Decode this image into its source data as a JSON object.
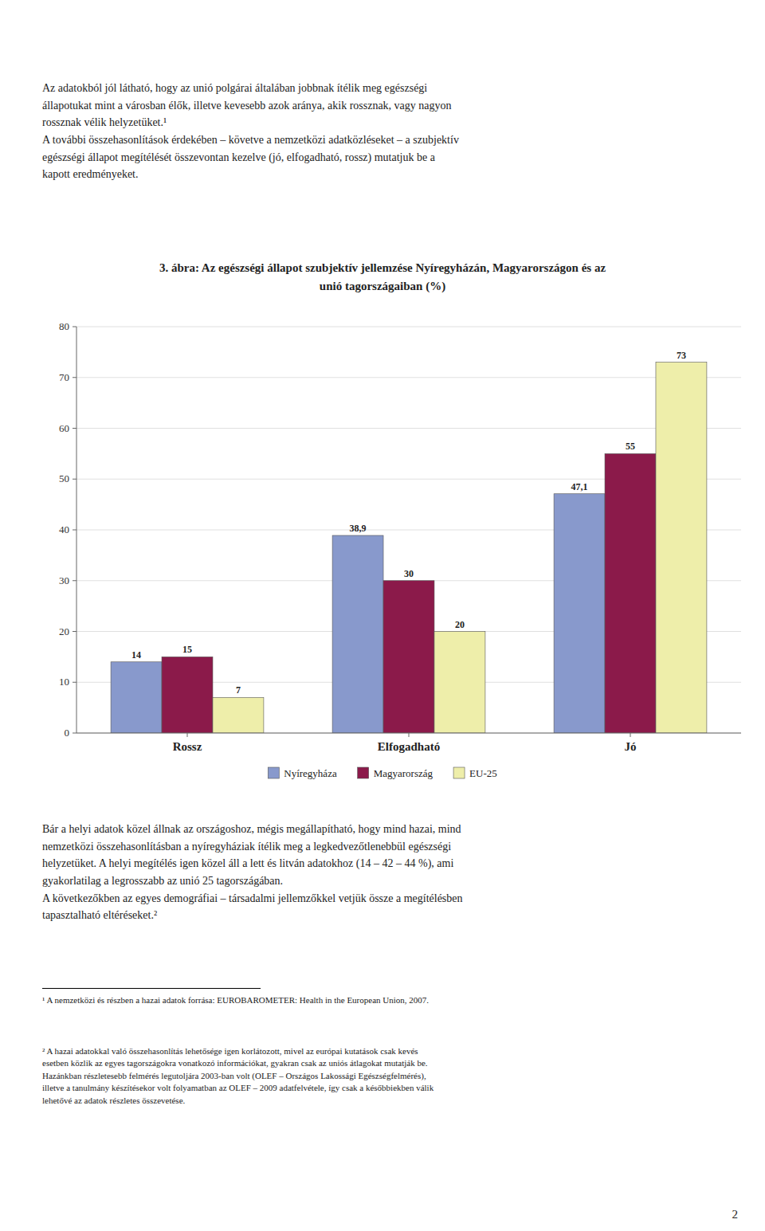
{
  "intro_text": "Az adatokból jól látható, hogy az unió polgárai általában jobbnak ítélik meg egészségi\nállapotukat mint a városban élők, illetve kevesebb azok aránya, akik rossznak, vagy nagyon\nrossznak vélik helyzetüket.¹\nA további összehasonlítások érdekében – követve a nemzetközi adatközléseket – a szubjektív\negészségi állapot megítélését összevontan kezelve (jó, elfogadható, rossz) mutatjuk be a\nkapott eredményeket.",
  "after_text": "Bár a helyi adatok közel állnak az országoshoz, mégis megállapítható, hogy mind hazai, mind\nnemzetközi összehasonlításban a nyíregyháziak ítélik meg a legkedvezőtlenebbül egészségi\nhelyzetüket. A helyi megítélés igen közel áll a lett és litván adatokhoz (14 – 42 – 44 %), ami\ngyakorlatilag a legrosszabb az unió 25 tagországában.\nA következőkben az egyes demográfiai – társadalmi jellemzőkkel vetjük össze a megítélésben\ntapasztalható eltéréseket.²",
  "footnotes": [
    "¹ A nemzetközi és részben a hazai adatok forrása: EUROBAROMETER: Health in the European Union, 2007.",
    "² A hazai adatokkal való összehasonlítás lehetősége igen korlátozott, mivel az európai kutatások csak kevés\nesetben közlik az egyes tagországokra vonatkozó információkat, gyakran csak az uniós átlagokat mutatják be.\nHazánkban részletesebb felmérés legutoljára 2003-ban volt (OLEF – Országos Lakossági Egészségfelmérés),\nilletve a tanulmány készítésekor volt folyamatban az OLEF – 2009 adatfelvétele, így csak a későbbiekben válik\nlehetővé az adatok részletes összevetése."
  ],
  "page_number": "2",
  "chart_data": {
    "type": "bar",
    "title": "3. ábra: Az egészségi állapot szubjektív jellemzése Nyíregyházán, Magyarországon és az\nunió tagországaiban (%)",
    "categories": [
      "Rossz",
      "Elfogadható",
      "Jó"
    ],
    "series": [
      {
        "name": "Nyíregyháza",
        "color": "#8899CC",
        "values": [
          14,
          38.9,
          47.1
        ],
        "value_labels": [
          "14",
          "38,9",
          "47,1"
        ]
      },
      {
        "name": "Magyarország",
        "color": "#8B1A4A",
        "values": [
          15,
          30,
          55
        ]
      },
      {
        "name": "EU-25",
        "color": "#EEEEAA",
        "values": [
          7,
          20,
          73
        ]
      }
    ],
    "ylim": [
      0,
      80
    ],
    "yticks": [
      0,
      10,
      20,
      30,
      40,
      50,
      60,
      70,
      80
    ],
    "grid": true,
    "legend": "bottom",
    "data_labels": true
  }
}
